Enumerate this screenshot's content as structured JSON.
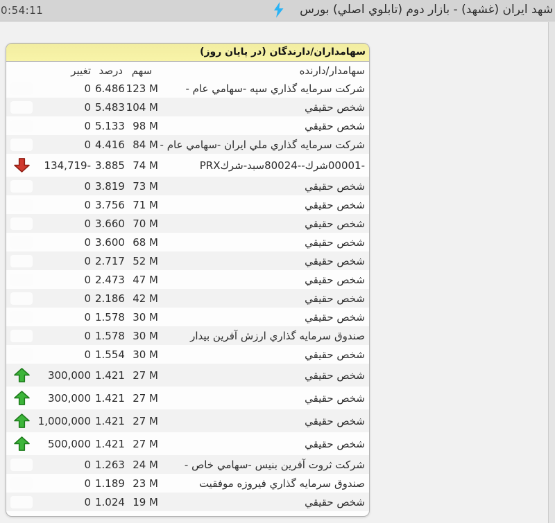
{
  "topbar": {
    "time": "0:54:11",
    "title": "شهد ايران  (غشهد) - بازار دوم (تابلوي اصلي) بورس",
    "bolt_icon": "lightning-bolt",
    "bolt_color": "#2ab3f5"
  },
  "panel": {
    "title": "سهامداران/دارندگان (در پايان روز)",
    "title_bg": "#f6f1a3",
    "columns": {
      "holder": "سهامدار/دارنده",
      "shares": "سهم",
      "percent": "درصد",
      "change": "تغيير"
    },
    "arrow_colors": {
      "up": "#3db53a",
      "up_stroke": "#1d7a1b",
      "down": "#d0392e",
      "down_stroke": "#8e1d12"
    },
    "stripe_color": "#f2f2f2",
    "rows": [
      {
        "holder": "شرکت سرمايه گذاري سپه -سهامي عام -",
        "shares": "123 M",
        "percent": "6.486",
        "change": "0",
        "arrow": "none"
      },
      {
        "holder": "شخص حقيقي",
        "shares": "104 M",
        "percent": "5.483",
        "change": "0",
        "arrow": "none"
      },
      {
        "holder": "شخص حقيقي",
        "shares": "98 M",
        "percent": "5.133",
        "change": "0",
        "arrow": "none"
      },
      {
        "holder": "شرکت سرمايه گذاري ملي ايران -سهامي عام -",
        "shares": "84 M",
        "percent": "4.416",
        "change": "0",
        "arrow": "none"
      },
      {
        "holder": "PRXسبد-شرك‎80024--‎شرك‎00001-",
        "shares": "74 M",
        "percent": "3.885",
        "change": "134,719-",
        "arrow": "down",
        "dir": "ltr"
      },
      {
        "holder": "شخص حقيقي",
        "shares": "73 M",
        "percent": "3.819",
        "change": "0",
        "arrow": "none"
      },
      {
        "holder": "شخص حقيقي",
        "shares": "71 M",
        "percent": "3.756",
        "change": "0",
        "arrow": "none"
      },
      {
        "holder": "شخص حقيقي",
        "shares": "70 M",
        "percent": "3.660",
        "change": "0",
        "arrow": "none"
      },
      {
        "holder": "شخص حقيقي",
        "shares": "68 M",
        "percent": "3.600",
        "change": "0",
        "arrow": "none"
      },
      {
        "holder": "شخص حقيقي",
        "shares": "52 M",
        "percent": "2.717",
        "change": "0",
        "arrow": "none"
      },
      {
        "holder": "شخص حقيقي",
        "shares": "47 M",
        "percent": "2.473",
        "change": "0",
        "arrow": "none"
      },
      {
        "holder": "شخص حقيقي",
        "shares": "42 M",
        "percent": "2.186",
        "change": "0",
        "arrow": "none"
      },
      {
        "holder": "شخص حقيقي",
        "shares": "30 M",
        "percent": "1.578",
        "change": "0",
        "arrow": "none"
      },
      {
        "holder": "صندوق سرمايه گذاري ارزش آفرين بيدار",
        "shares": "30 M",
        "percent": "1.578",
        "change": "0",
        "arrow": "none"
      },
      {
        "holder": "شخص حقيقي",
        "shares": "30 M",
        "percent": "1.554",
        "change": "0",
        "arrow": "none"
      },
      {
        "holder": "شخص حقيقي",
        "shares": "27 M",
        "percent": "1.421",
        "change": "300,000",
        "arrow": "up"
      },
      {
        "holder": "شخص حقيقي",
        "shares": "27 M",
        "percent": "1.421",
        "change": "300,000",
        "arrow": "up"
      },
      {
        "holder": "شخص حقيقي",
        "shares": "27 M",
        "percent": "1.421",
        "change": "1,000,000",
        "arrow": "up"
      },
      {
        "holder": "شخص حقيقي",
        "shares": "27 M",
        "percent": "1.421",
        "change": "500,000",
        "arrow": "up"
      },
      {
        "holder": "شرکت ثروت آفرين بنيس -سهامي خاص -",
        "shares": "24 M",
        "percent": "1.263",
        "change": "0",
        "arrow": "none"
      },
      {
        "holder": "صندوق سرمايه گذاري فيروزه موفقيت",
        "shares": "23 M",
        "percent": "1.189",
        "change": "0",
        "arrow": "none"
      },
      {
        "holder": "شخص حقيقي",
        "shares": "19 M",
        "percent": "1.024",
        "change": "0",
        "arrow": "none"
      }
    ]
  }
}
